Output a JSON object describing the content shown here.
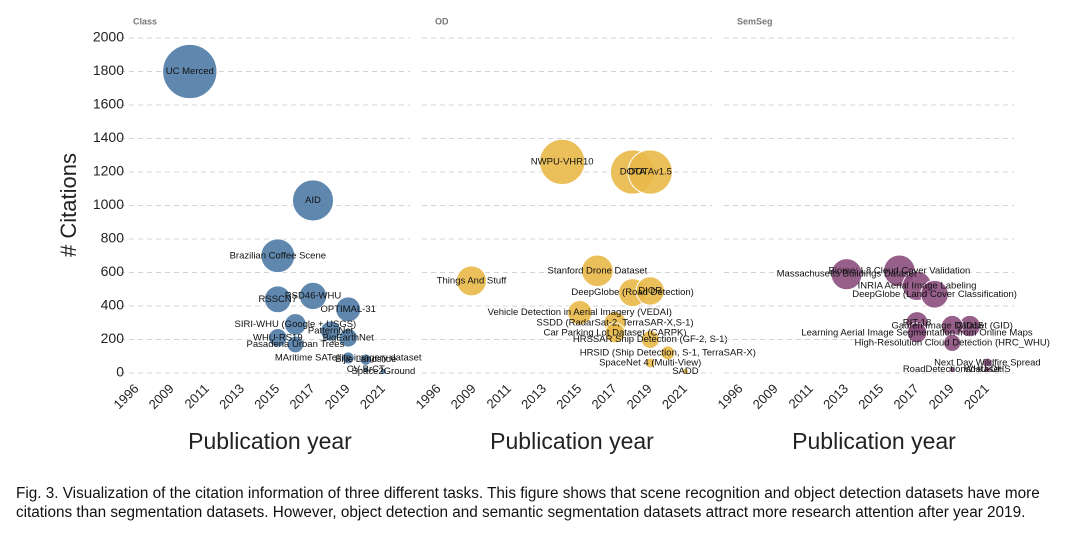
{
  "chart_data": [
    {
      "type": "bubble",
      "title": "Class",
      "x_label": "Publication year",
      "y_label": "# Citations",
      "color": "#4f7ba6",
      "ylim": [
        0,
        2000
      ],
      "yticks": [
        0,
        200,
        400,
        600,
        800,
        1000,
        1200,
        1400,
        1600,
        1800,
        2000
      ],
      "ytick_labels": true,
      "grid": true,
      "xticks": [
        1996,
        2009,
        2011,
        2013,
        2015,
        2017,
        2019,
        2021
      ],
      "labels": [
        "UC Merced",
        "AID",
        "Brazilian Coffee Scene",
        "RSD46-WHU",
        "RSSCN7",
        "OPTIMAL-31",
        "SIRI-WHU (Google + USGS)",
        "PatternNet",
        "WHU-RS19",
        "BigEarthNet",
        "Pasadena Urban Trees",
        "MAritime SATellite imagery dataset",
        "Bijie Landslide",
        "CV-BrCT",
        "Space2Ground"
      ],
      "x": [
        2010,
        2017,
        2015,
        2017,
        2015,
        2019,
        2016,
        2018,
        2015,
        2019,
        2016,
        2019,
        2020,
        2020,
        2021
      ],
      "values": [
        1800,
        1030,
        700,
        460,
        440,
        380,
        290,
        250,
        210,
        210,
        170,
        90,
        80,
        20,
        10
      ]
    },
    {
      "type": "bubble",
      "title": "OD",
      "x_label": "Publication year",
      "color": "#e9b949",
      "ylim": [
        0,
        2000
      ],
      "yticks": [
        0,
        200,
        400,
        600,
        800,
        1000,
        1200,
        1400,
        1600,
        1800,
        2000
      ],
      "ytick_labels": false,
      "grid": true,
      "xticks": [
        1996,
        2009,
        2011,
        2013,
        2015,
        2017,
        2019,
        2021
      ],
      "labels": [
        "NWPU-VHR10",
        "DOTA",
        "DOTAv1.5",
        "Stanford Drone Dataset",
        "Things And Stuff",
        "DeepGlobe (Road Detection)",
        "DIOR",
        "Vehicle Detection in Aerial Imagery (VEDAI)",
        "SSDD (RadarSat-2, TerraSAR-X,S-1)",
        "Car Parking Lot Dataset (CARPK)",
        "HRSSAR Ship Detection (GF-2, S-1)",
        "HRSID (Ship Detection, S-1, TerraSAR-X)",
        "SpaceNet 4 (Multi-View)",
        "SADD"
      ],
      "x": [
        2014,
        2018,
        2019,
        2016,
        2008,
        2018,
        2019,
        2015,
        2017,
        2017,
        2019,
        2020,
        2019,
        2021
      ],
      "values": [
        1260,
        1200,
        1200,
        610,
        550,
        480,
        490,
        360,
        300,
        240,
        200,
        120,
        60,
        10
      ]
    },
    {
      "type": "bubble",
      "title": "SemSeg",
      "x_label": "Publication year",
      "color": "#8c4f7e",
      "ylim": [
        0,
        2000
      ],
      "yticks": [
        0,
        200,
        400,
        600,
        800,
        1000,
        1200,
        1400,
        1600,
        1800,
        2000
      ],
      "ytick_labels": false,
      "grid": true,
      "xticks": [
        1996,
        2009,
        2011,
        2013,
        2015,
        2017,
        2019,
        2021
      ],
      "labels": [
        "Biome: L8 Cloud Cover Validation",
        "Massachusetts Buildings Dataset",
        "INRIA Aerial Image Labeling",
        "DeepGlobe (Land Cover Classification)",
        "RIT-18",
        "GID15",
        "Gaofen Image Dataset (GID)",
        "Learning Aerial Image Segmentation from Online Maps",
        "High-Resolution Cloud Detection (HRC_WHU)",
        "Next Day Wildfire Spread",
        "RoadDetectionsdataset",
        "WHU-OHS"
      ],
      "x": [
        2016,
        2013,
        2017,
        2018,
        2017,
        2020,
        2019,
        2017,
        2019,
        2021,
        2019,
        2021
      ],
      "values": [
        610,
        590,
        520,
        470,
        300,
        280,
        280,
        240,
        180,
        60,
        20,
        20
      ]
    }
  ],
  "caption": "Fig. 3. Visualization of the citation information of three different tasks. This figure shows that scene recognition and object detection datasets have more citations than segmentation datasets. However, object detection and semantic segmentation datasets attract more research attention after year 2019."
}
